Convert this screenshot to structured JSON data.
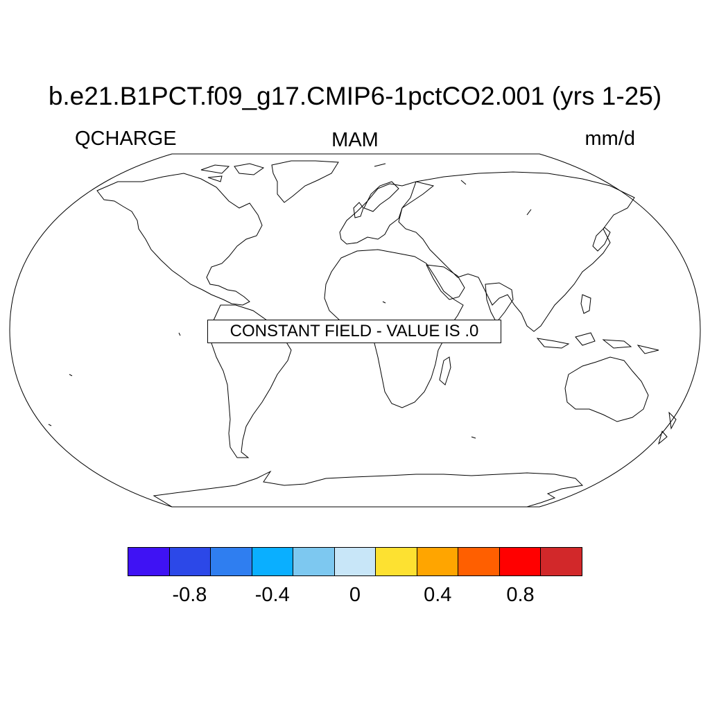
{
  "title": "b.e21.B1PCT.f09_g17.CMIP6-1pctCO2.001 (yrs 1-25)",
  "left_label": "QCHARGE",
  "center_label": "MAM",
  "right_label": "mm/d",
  "message": "CONSTANT FIELD - VALUE IS .0",
  "colorbar": {
    "colors": [
      "#3f12f4",
      "#2c48e8",
      "#2f7ef0",
      "#0aafff",
      "#7dc8f0",
      "#c8e6f8",
      "#fde131",
      "#ffa500",
      "#ff5f00",
      "#ff0000",
      "#d2282a"
    ],
    "labels": [
      "-0.8",
      "-0.4",
      "0",
      "0.4",
      "0.8"
    ],
    "label_values": [
      -0.8,
      -0.4,
      0,
      0.4,
      0.8
    ],
    "levels": [
      -1.0,
      -0.8,
      -0.6,
      -0.4,
      -0.2,
      0,
      0.2,
      0.4,
      0.6,
      0.8,
      1.0
    ]
  },
  "projection": "Robinson"
}
